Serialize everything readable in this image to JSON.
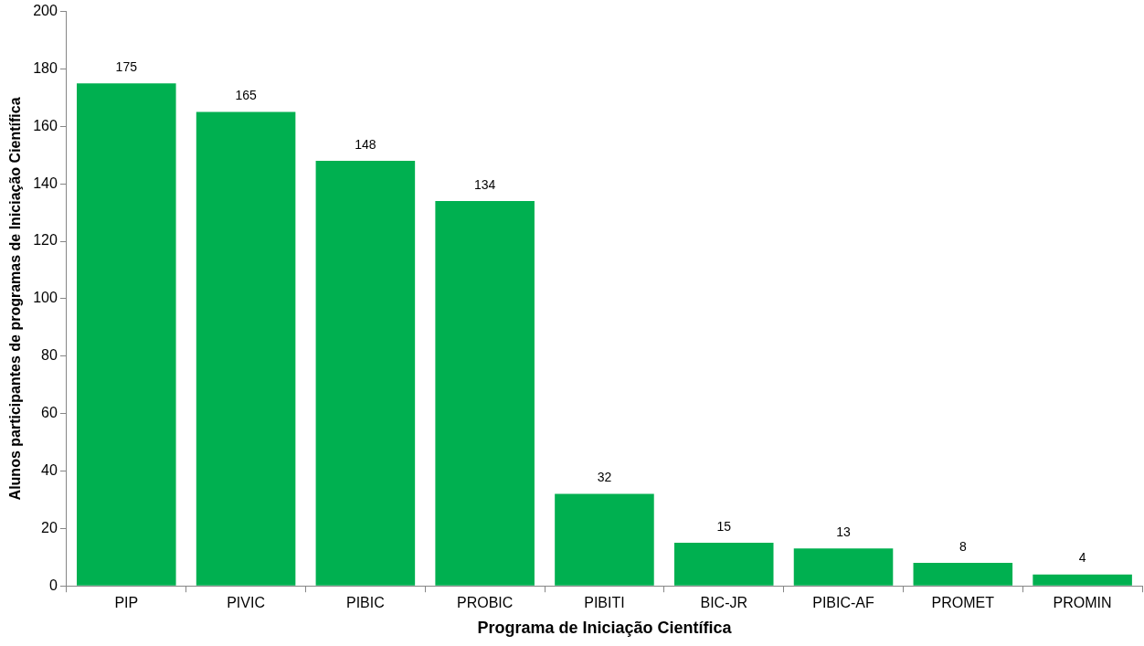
{
  "chart_data": {
    "type": "bar",
    "xlabel": "Programa de Iniciação Científica",
    "ylabel": "Alunos participantes de programas de Iniciação Científica",
    "categories": [
      "PIP",
      "PIVIC",
      "PIBIC",
      "PROBIC",
      "PIBITI",
      "BIC-JR",
      "PIBIC-AF",
      "PROMET",
      "PROMIN"
    ],
    "values": [
      175,
      165,
      148,
      134,
      32,
      15,
      13,
      8,
      4
    ],
    "color": "#00b050",
    "ylim": [
      0,
      200
    ],
    "yticks": [
      0,
      20,
      40,
      60,
      80,
      100,
      120,
      140,
      160,
      180,
      200
    ],
    "grid": false,
    "legend": false,
    "data_labels": true
  }
}
